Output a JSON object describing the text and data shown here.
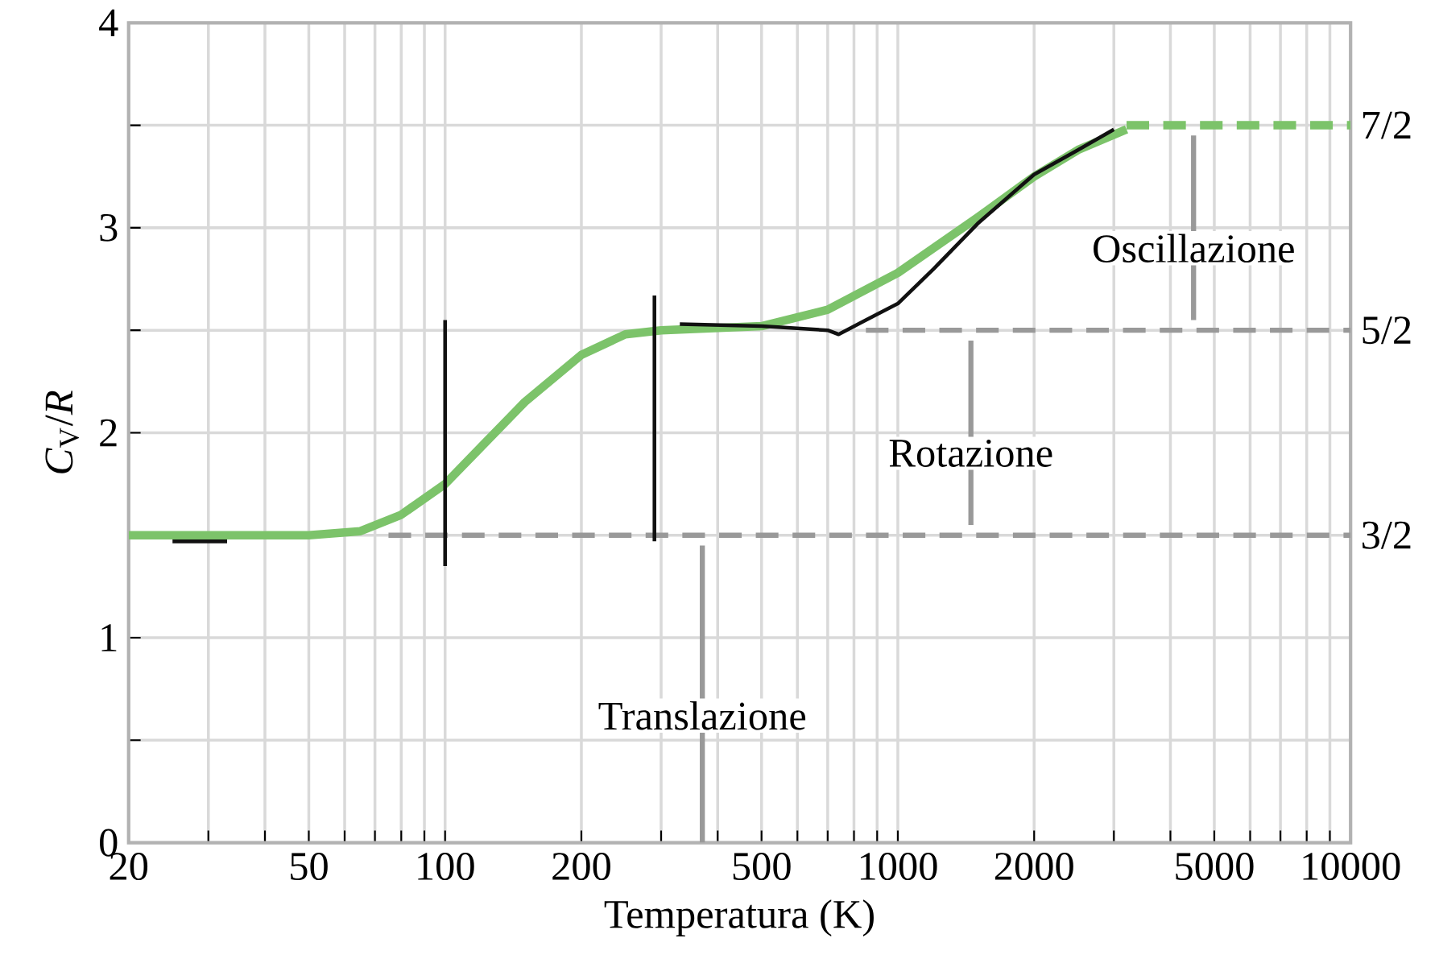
{
  "chart_data": {
    "type": "line",
    "xlabel": "Temperatura (K)",
    "ylabel": "*C*$_{V}$/*R*",
    "log": "x",
    "grid": true,
    "marker": "none",
    "xlim": [
      20,
      10000
    ],
    "ylim": [
      0,
      4
    ],
    "xticks": [
      20,
      {
        "value": 30,
        "label": null
      },
      {
        "value": 40,
        "label": null
      },
      50,
      {
        "value": 60,
        "label": null
      },
      {
        "value": 70,
        "label": null
      },
      {
        "value": 80,
        "label": null
      },
      {
        "value": 90,
        "label": null
      },
      100,
      200,
      {
        "value": 300,
        "label": null
      },
      {
        "value": 400,
        "label": null
      },
      500,
      {
        "value": 600,
        "label": null
      },
      {
        "value": 700,
        "label": null
      },
      {
        "value": 800,
        "label": null
      },
      {
        "value": 900,
        "label": null
      },
      1000,
      2000,
      {
        "value": 3000,
        "label": null
      },
      {
        "value": 4000,
        "label": null
      },
      5000,
      {
        "value": 6000,
        "label": null
      },
      {
        "value": 7000,
        "label": null
      },
      {
        "value": 8000,
        "label": null
      },
      {
        "value": 9000,
        "label": null
      },
      10000
    ],
    "yticks": [
      0,
      {
        "value": 0.5,
        "label": null
      },
      1,
      {
        "value": 1.5,
        "label": null
      },
      2,
      {
        "value": 2.5,
        "label": null
      },
      3,
      {
        "value": 3.5,
        "label": null
      },
      4
    ],
    "y2lim": [
      0,
      4
    ],
    "y2ticks": [
      {
        "value": 1.5,
        "label": "3/2"
      },
      {
        "value": 2.5,
        "label": "5/2"
      },
      {
        "value": 3.5,
        "label": "7/2"
      }
    ],
    "series": [
      {
        "color": "#7cc36a",
        "x": [
          20,
          50,
          65,
          80,
          100,
          120,
          150,
          200,
          250,
          300,
          500,
          700,
          1000,
          1500,
          2000,
          2500,
          3200
        ],
        "values": [
          1.5,
          1.5,
          1.52,
          1.6,
          1.75,
          1.93,
          2.15,
          2.38,
          2.48,
          2.5,
          2.52,
          2.6,
          2.78,
          3.05,
          3.25,
          3.38,
          3.48
        ]
      },
      {
        "color": "#7cc36a",
        "line_style": "dashed",
        "x": [
          3200,
          10000
        ],
        "values": [
          3.5,
          3.5
        ]
      },
      {
        "color": "#999999",
        "line_style": "dashed",
        "x": [
          75,
          10000
        ],
        "values": [
          1.5,
          1.5
        ]
      },
      {
        "color": "#999999",
        "line_style": "dashed",
        "x": [
          850,
          10000
        ],
        "values": [
          2.5,
          2.5
        ]
      },
      {
        "color": "#999999",
        "x": [
          370,
          370
        ],
        "values": [
          0,
          1.45
        ]
      },
      {
        "color": "#999999",
        "x": [
          1450,
          1450
        ],
        "values": [
          1.55,
          2.45
        ]
      },
      {
        "color": "#999999",
        "x": [
          4500,
          4500
        ],
        "values": [
          2.55,
          3.45
        ]
      },
      {
        "color": "#111111",
        "x": [
          25,
          33
        ],
        "values": [
          1.47,
          1.47
        ]
      },
      {
        "color": "#111111",
        "x": [
          330,
          500,
          700,
          740,
          850,
          1000,
          1200,
          1500,
          2000,
          2500,
          3000
        ],
        "values": [
          2.53,
          2.52,
          2.5,
          2.48,
          2.55,
          2.63,
          2.8,
          3.02,
          3.26,
          3.38,
          3.48
        ]
      },
      {
        "color": "#111111",
        "x": [
          100,
          100
        ],
        "values": [
          1.35,
          2.55
        ]
      },
      {
        "color": "#111111",
        "x": [
          290,
          290
        ],
        "values": [
          1.47,
          2.67
        ]
      }
    ],
    "annotations": [
      {
        "text": "Translazione",
        "x": 370,
        "y": 0.62
      },
      {
        "text": "Rotazione",
        "x": 1450,
        "y": 1.9
      },
      {
        "text": "Oscillazione",
        "x": 4500,
        "y": 2.9
      }
    ]
  }
}
